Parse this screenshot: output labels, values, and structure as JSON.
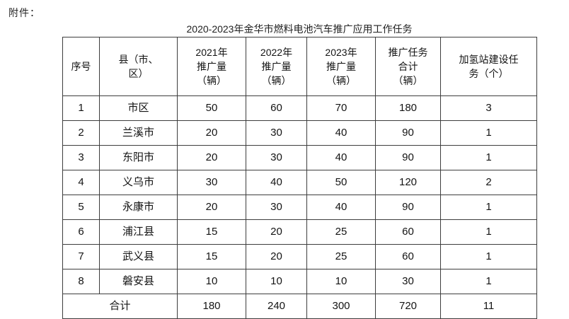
{
  "page": {
    "attachment_label": "附件：",
    "title": "2020-2023年金华市燃料电池汽车推广应用工作任务"
  },
  "table": {
    "headers": [
      "序号",
      "县（市、\n区）",
      "2021年\n推广量\n（辆）",
      "2022年\n推广量\n（辆）",
      "2023年\n推广量\n（辆）",
      "推广任务\n合计\n（辆）",
      "加氢站建设任\n务（个）"
    ],
    "rows": [
      [
        "1",
        "市区",
        "50",
        "60",
        "70",
        "180",
        "3"
      ],
      [
        "2",
        "兰溪市",
        "20",
        "30",
        "40",
        "90",
        "1"
      ],
      [
        "3",
        "东阳市",
        "20",
        "30",
        "40",
        "90",
        "1"
      ],
      [
        "4",
        "义乌市",
        "30",
        "40",
        "50",
        "120",
        "2"
      ],
      [
        "5",
        "永康市",
        "20",
        "30",
        "40",
        "90",
        "1"
      ],
      [
        "6",
        "浦江县",
        "15",
        "20",
        "25",
        "60",
        "1"
      ],
      [
        "7",
        "武义县",
        "15",
        "20",
        "25",
        "60",
        "1"
      ],
      [
        "8",
        "磐安县",
        "10",
        "10",
        "10",
        "30",
        "1"
      ]
    ],
    "footer": [
      "合计",
      "180",
      "240",
      "300",
      "720",
      "11"
    ]
  }
}
